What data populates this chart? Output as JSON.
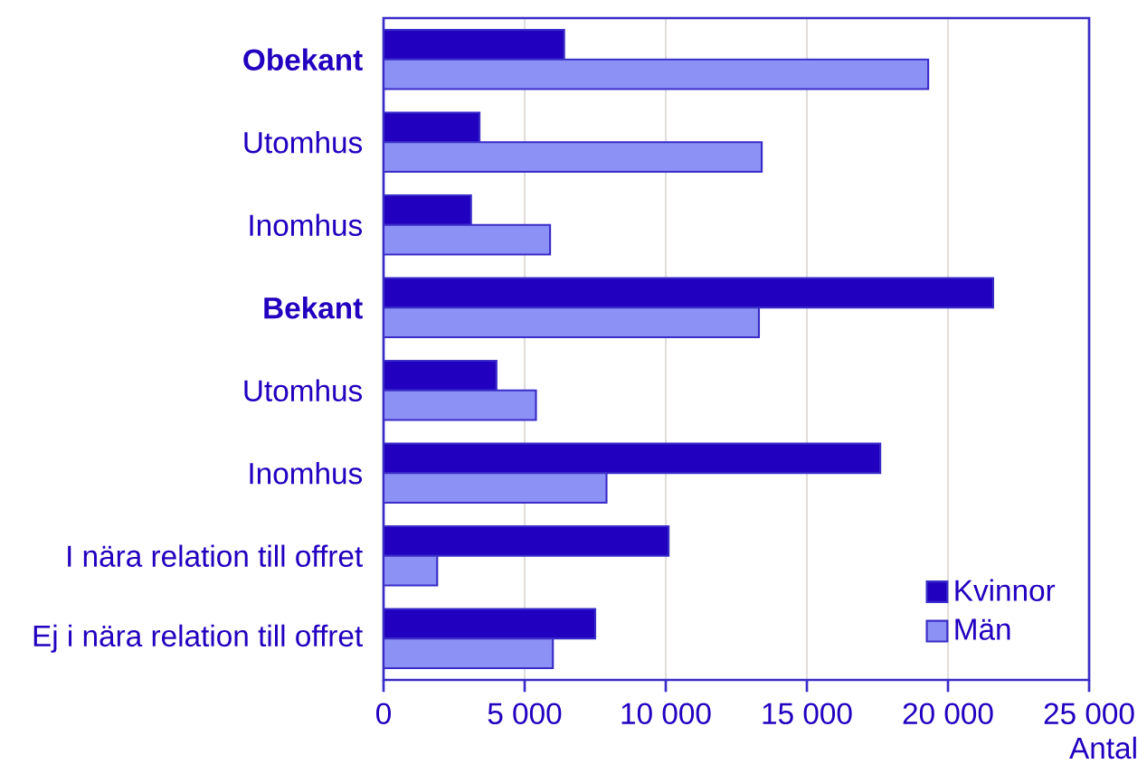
{
  "chart_data": {
    "type": "bar",
    "orientation": "horizontal",
    "xlabel": "Antal",
    "categories": [
      "**Obekant**",
      "Utomhus",
      "Inomhus",
      "**Bekant**",
      "Utomhus",
      "Inomhus",
      "I nära relation till offret",
      "Ej i nära relation till offret"
    ],
    "series": [
      {
        "name": "Kvinnor",
        "color": "#2200c0",
        "values": [
          6400,
          3400,
          3100,
          21600,
          4000,
          17600,
          10100,
          7500
        ]
      },
      {
        "name": "Män",
        "color": "#8c91f5",
        "values": [
          19300,
          13400,
          5900,
          13300,
          5400,
          7900,
          1900,
          6000
        ]
      }
    ],
    "xlim": [
      0,
      25000
    ],
    "xticks": [
      0,
      {
        "value": 5000,
        "label": "5 000"
      },
      {
        "value": 10000,
        "label": "10 000"
      },
      {
        "value": 15000,
        "label": "15 000"
      },
      {
        "value": 20000,
        "label": "20 000"
      },
      {
        "value": 25000,
        "label": "25 000"
      }
    ],
    "grid": "x",
    "legend": "bottom right"
  }
}
